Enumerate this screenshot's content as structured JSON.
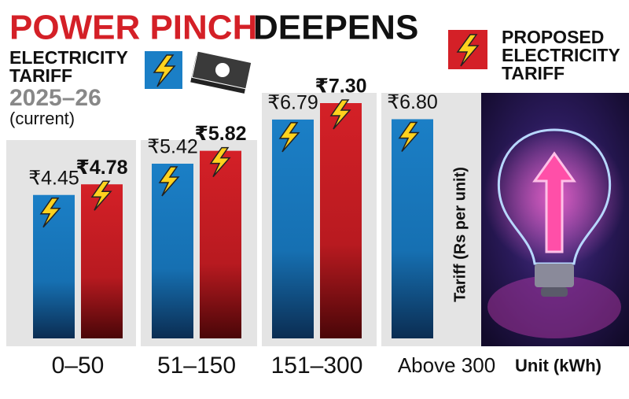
{
  "chart_data": {
    "type": "bar",
    "title": {
      "highlight": "POWER PINCH",
      "rest": "DEEPENS"
    },
    "categories": [
      "0–50",
      "51–150",
      "151–300",
      "Above 300"
    ],
    "series": [
      {
        "name": "ELECTRICITY TARIFF",
        "period": "2025–26",
        "note": "(current)",
        "color": "#1b7fc6",
        "values": [
          4.45,
          5.42,
          6.79,
          6.8
        ],
        "value_labels": [
          "₹4.45",
          "₹5.42",
          "₹6.79",
          "₹6.80"
        ]
      },
      {
        "name": "PROPOSED ELECTRICITY TARIFF",
        "color": "#d42027",
        "values": [
          4.78,
          5.82,
          7.3,
          null
        ],
        "value_labels": [
          "₹4.78",
          "₹5.82",
          "₹7.30",
          null
        ]
      }
    ],
    "y_label": "Tariff (Rs per unit)",
    "x_label": "Unit (kWh)"
  }
}
